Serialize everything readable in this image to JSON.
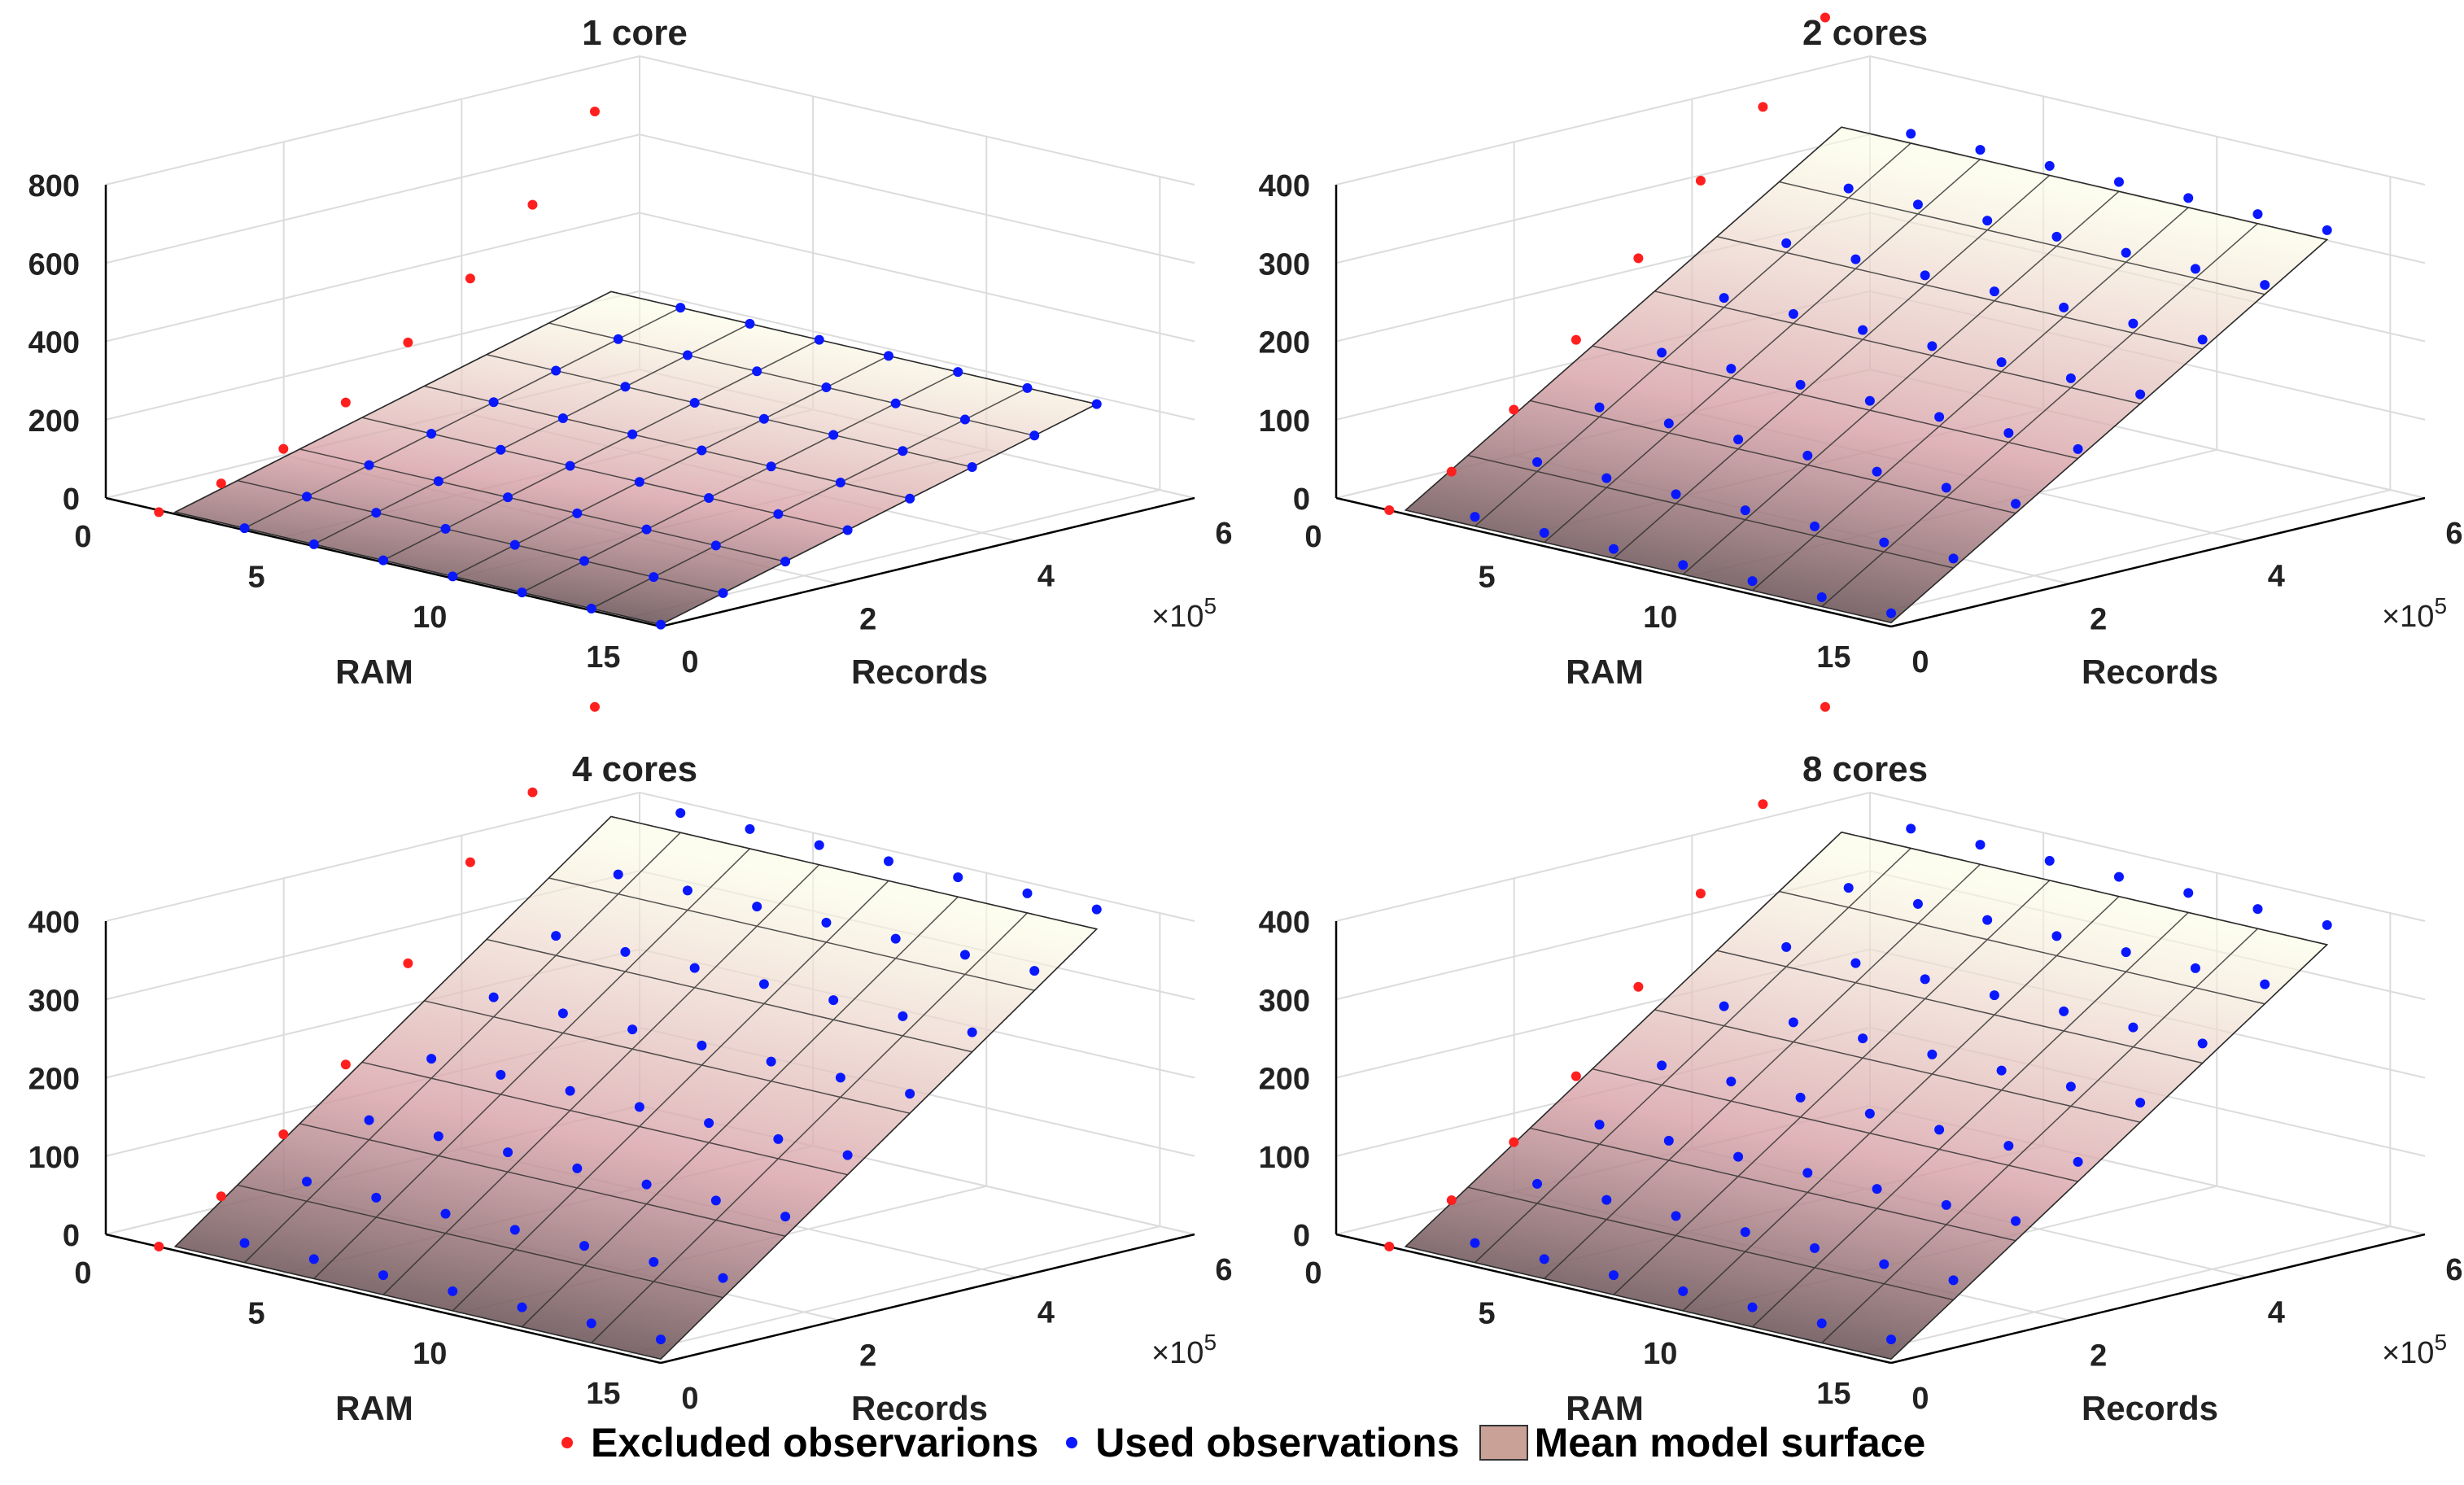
{
  "legend": {
    "excluded_label": "Excluded observarions",
    "used_label": "Used observations",
    "surface_label": "Mean model surface"
  },
  "colors": {
    "excluded": "#ff1f1f",
    "used": "#0a18ff",
    "surface_low": "#3b3537",
    "surface_mid": "#d7a0a6",
    "surface_high": "#fbfbe4",
    "grid": "#dcdcdc",
    "axis": "#000000"
  },
  "chart_data": [
    {
      "type": "surface3d",
      "title": "1 core",
      "xlabel": "RAM",
      "ylabel": "Records",
      "zlabel": "",
      "xlim": [
        0,
        16
      ],
      "ylim": [
        0,
        6
      ],
      "zlim": [
        0,
        800
      ],
      "xticks": [
        0,
        5,
        10,
        15
      ],
      "yticks": [
        0,
        2,
        4,
        6
      ],
      "zticks": [
        0,
        200,
        400,
        600,
        800
      ],
      "y_exponent": "×10^5",
      "ram_values": [
        2,
        4,
        6,
        8,
        10,
        12,
        14,
        16
      ],
      "records_values": [
        0,
        0.7,
        1.4,
        2.1,
        2.8,
        3.5,
        4.2,
        4.9
      ],
      "surface_height_at_max_records": 300,
      "excluded_observations": [
        {
          "ram": 2,
          "records": 0,
          "value": 5
        },
        {
          "ram": 2,
          "records": 0.7,
          "value": 40
        },
        {
          "ram": 2,
          "records": 1.4,
          "value": 90
        },
        {
          "ram": 2,
          "records": 2.1,
          "value": 170
        },
        {
          "ram": 2,
          "records": 2.8,
          "value": 285
        },
        {
          "ram": 2,
          "records": 3.5,
          "value": 410
        },
        {
          "ram": 2,
          "records": 4.2,
          "value": 560
        },
        {
          "ram": 2,
          "records": 4.9,
          "value": 760
        }
      ],
      "used_observations_offset": 0
    },
    {
      "type": "surface3d",
      "title": "2 cores",
      "xlabel": "RAM",
      "ylabel": "Records",
      "zlabel": "",
      "xlim": [
        0,
        16
      ],
      "ylim": [
        0,
        6
      ],
      "zlim": [
        0,
        400
      ],
      "xticks": [
        0,
        5,
        10,
        15
      ],
      "yticks": [
        0,
        2,
        4,
        6
      ],
      "zticks": [
        0,
        100,
        200,
        300,
        400
      ],
      "y_exponent": "×10^5",
      "ram_values": [
        2,
        4,
        6,
        8,
        10,
        12,
        14,
        16
      ],
      "records_values": [
        0,
        0.7,
        1.4,
        2.1,
        2.8,
        3.5,
        4.2,
        4.9
      ],
      "surface_height_at_max_records": 360,
      "excluded_observations": [
        {
          "ram": 2,
          "records": 0,
          "value": 5
        },
        {
          "ram": 2,
          "records": 0.7,
          "value": 35
        },
        {
          "ram": 2,
          "records": 1.4,
          "value": 95
        },
        {
          "ram": 2,
          "records": 2.1,
          "value": 165
        },
        {
          "ram": 2,
          "records": 2.8,
          "value": 250
        },
        {
          "ram": 2,
          "records": 3.5,
          "value": 330
        },
        {
          "ram": 2,
          "records": 4.2,
          "value": 405
        },
        {
          "ram": 2,
          "records": 4.9,
          "value": 500
        }
      ],
      "used_observations_offset": 12
    },
    {
      "type": "surface3d",
      "title": "4 cores",
      "xlabel": "RAM",
      "ylabel": "Records",
      "zlabel": "",
      "xlim": [
        0,
        16
      ],
      "ylim": [
        0,
        6
      ],
      "zlim": [
        0,
        400
      ],
      "xticks": [
        0,
        5,
        10,
        15
      ],
      "yticks": [
        0,
        2,
        4,
        6
      ],
      "zticks": [
        0,
        100,
        200,
        300,
        400
      ],
      "y_exponent": "×10^5",
      "ram_values": [
        2,
        4,
        6,
        8,
        10,
        12,
        14,
        16
      ],
      "records_values": [
        0,
        0.7,
        1.4,
        2.1,
        2.8,
        3.5,
        4.2,
        4.9
      ],
      "surface_height_at_max_records": 420,
      "excluded_observations": [
        {
          "ram": 2,
          "records": 0,
          "value": 5
        },
        {
          "ram": 2,
          "records": 0.7,
          "value": 50
        },
        {
          "ram": 2,
          "records": 1.4,
          "value": 110
        },
        {
          "ram": 2,
          "records": 2.1,
          "value": 180
        },
        {
          "ram": 2,
          "records": 2.8,
          "value": 290
        },
        {
          "ram": 2,
          "records": 3.5,
          "value": 400
        },
        {
          "ram": 2,
          "records": 4.2,
          "value": 470
        },
        {
          "ram": 2,
          "records": 4.9,
          "value": 560
        }
      ],
      "used_observations_offset": 25
    },
    {
      "type": "surface3d",
      "title": "8 cores",
      "xlabel": "RAM",
      "ylabel": "Records",
      "zlabel": "",
      "xlim": [
        0,
        16
      ],
      "ylim": [
        0,
        6
      ],
      "zlim": [
        0,
        400
      ],
      "xticks": [
        0,
        5,
        10,
        15
      ],
      "yticks": [
        0,
        2,
        4,
        6
      ],
      "zticks": [
        0,
        100,
        200,
        300,
        400
      ],
      "y_exponent": "×10^5",
      "ram_values": [
        2,
        4,
        6,
        8,
        10,
        12,
        14,
        16
      ],
      "records_values": [
        0,
        0.7,
        1.4,
        2.1,
        2.8,
        3.5,
        4.2,
        4.9
      ],
      "surface_height_at_max_records": 400,
      "excluded_observations": [
        {
          "ram": 2,
          "records": 0,
          "value": 5
        },
        {
          "ram": 2,
          "records": 0.7,
          "value": 45
        },
        {
          "ram": 2,
          "records": 1.4,
          "value": 100
        },
        {
          "ram": 2,
          "records": 2.1,
          "value": 165
        },
        {
          "ram": 2,
          "records": 2.8,
          "value": 260
        },
        {
          "ram": 2,
          "records": 3.5,
          "value": 360
        },
        {
          "ram": 2,
          "records": 4.2,
          "value": 455
        },
        {
          "ram": 2,
          "records": 4.9,
          "value": 560
        }
      ],
      "used_observations_offset": 25
    }
  ]
}
